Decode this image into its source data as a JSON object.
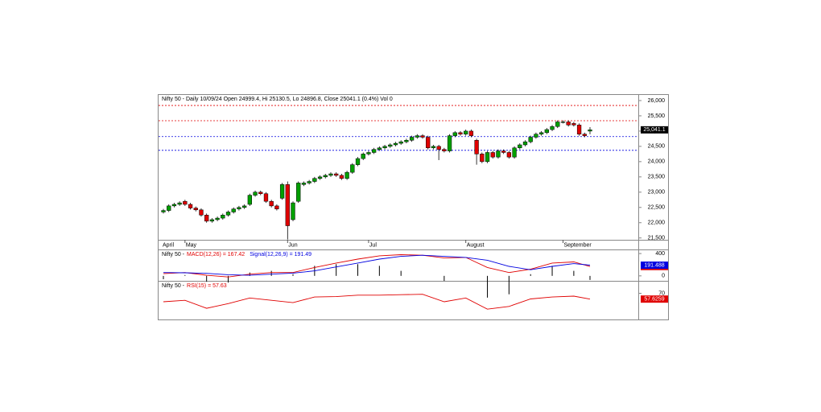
{
  "chart_data": [
    {
      "type": "candlestick",
      "title": "Nifty 50 - Daily 10/09/24 Open 24999.4, Hi 25130.5, Lo 24896.8, Close 25041.1 (0.4%) Vol 0",
      "x_labels": [
        {
          "value": 0,
          "label": "April"
        },
        {
          "value": 4,
          "label": "May"
        },
        {
          "value": 23,
          "label": "Jun"
        },
        {
          "value": 38,
          "label": "Jul"
        },
        {
          "value": 56,
          "label": "August"
        },
        {
          "value": 74,
          "label": "September"
        }
      ],
      "open": [
        22350,
        22400,
        22550,
        22600,
        22700,
        22600,
        22480,
        22420,
        22250,
        22050,
        22100,
        22150,
        22250,
        22350,
        22450,
        22500,
        22600,
        22900,
        23000,
        22950,
        22700,
        22550,
        22800,
        23250,
        22100,
        22700,
        23250,
        23300,
        23350,
        23450,
        23500,
        23550,
        23600,
        23550,
        23450,
        23650,
        23900,
        24100,
        24250,
        24300,
        24400,
        24450,
        24500,
        24550,
        24600,
        24650,
        24700,
        24800,
        24850,
        24800,
        24450,
        24500,
        24400,
        24350,
        24850,
        24950,
        24900,
        25000,
        24700,
        24250,
        24000,
        24300,
        24150,
        24350,
        24300,
        24150,
        24450,
        24550,
        24650,
        24800,
        24900,
        24950,
        25050,
        25150,
        25300,
        25300,
        25250,
        25200,
        24900,
        24999.4
      ],
      "high": [
        22450,
        22600,
        22650,
        22700,
        22750,
        22650,
        22530,
        22470,
        22300,
        22150,
        22200,
        22300,
        22400,
        22500,
        22550,
        22600,
        22950,
        23050,
        23050,
        23000,
        22750,
        22600,
        23300,
        23350,
        22700,
        23350,
        23350,
        23400,
        23500,
        23550,
        23600,
        23650,
        23650,
        23600,
        23700,
        23950,
        24150,
        24300,
        24350,
        24450,
        24500,
        24550,
        24600,
        24650,
        24700,
        24750,
        24850,
        24900,
        24900,
        24850,
        24550,
        24550,
        24450,
        24900,
        25000,
        25000,
        25050,
        25050,
        24750,
        24300,
        24350,
        24350,
        24400,
        24400,
        24350,
        24500,
        24600,
        24700,
        24850,
        24950,
        25000,
        25100,
        25200,
        25350,
        25350,
        25350,
        25300,
        25250,
        24950,
        25130.5
      ],
      "low": [
        22300,
        22350,
        22500,
        22550,
        22550,
        22430,
        22370,
        22200,
        22000,
        22000,
        22050,
        22100,
        22200,
        22300,
        22400,
        22450,
        22550,
        22850,
        22900,
        22650,
        22500,
        22400,
        22750,
        21450,
        22050,
        22650,
        23200,
        23250,
        23300,
        23400,
        23450,
        23500,
        23500,
        23400,
        23400,
        23600,
        23850,
        24050,
        24200,
        24250,
        24350,
        24400,
        24450,
        24500,
        24550,
        24600,
        24650,
        24750,
        24750,
        24400,
        24400,
        24050,
        24300,
        24300,
        24800,
        24850,
        24850,
        24800,
        23900,
        23950,
        23950,
        24100,
        24100,
        24250,
        24100,
        24100,
        24400,
        24500,
        24600,
        24750,
        24850,
        24900,
        25000,
        25100,
        25250,
        25150,
        25150,
        24850,
        24800,
        24896.8
      ],
      "close": [
        22400,
        22550,
        22600,
        22650,
        22600,
        22480,
        22420,
        22250,
        22050,
        22100,
        22150,
        22250,
        22350,
        22450,
        22500,
        22550,
        22900,
        23000,
        22950,
        22700,
        22550,
        22450,
        23250,
        21900,
        22650,
        23300,
        23300,
        23350,
        23450,
        23500,
        23550,
        23600,
        23550,
        23450,
        23650,
        23900,
        24100,
        24250,
        24300,
        24400,
        24450,
        24500,
        24550,
        24600,
        24650,
        24700,
        24800,
        24850,
        24800,
        24450,
        24500,
        24400,
        24350,
        24850,
        24950,
        24900,
        25000,
        24850,
        24250,
        24000,
        24300,
        24150,
        24350,
        24300,
        24150,
        24450,
        24550,
        24650,
        24800,
        24900,
        24950,
        25050,
        25150,
        25300,
        25300,
        25200,
        25200,
        24900,
        24850,
        25041.1
      ],
      "up_color": "#00a000",
      "down_color": "#e00000",
      "ylim": [
        21440,
        26210
      ],
      "yticks": [
        {
          "value": 21500,
          "label": "21,500"
        },
        {
          "value": 22000,
          "label": "22,000"
        },
        {
          "value": 22500,
          "label": "22,500"
        },
        {
          "value": 23000,
          "label": "23,000"
        },
        {
          "value": 23500,
          "label": "23,500"
        },
        {
          "value": 24000,
          "label": "24,000"
        },
        {
          "value": 24500,
          "label": "24,500"
        },
        {
          "value": 25000,
          "label": "25,000"
        },
        {
          "value": 25500,
          "label": "25,500"
        },
        {
          "value": 26000,
          "label": "26,000"
        }
      ],
      "levels": [
        {
          "value": 25840,
          "color": "#e00000"
        },
        {
          "value": 25340,
          "color": "#e00000"
        },
        {
          "value": 24820,
          "color": "#0000e0"
        },
        {
          "value": 24370,
          "color": "#0000e0"
        }
      ],
      "last_label": "25,041.1"
    },
    {
      "type": "line",
      "title": "Nifty 50 -",
      "x": [
        0,
        4,
        8,
        12,
        16,
        20,
        24,
        28,
        32,
        36,
        40,
        44,
        48,
        52,
        56,
        60,
        64,
        68,
        72,
        76,
        79
      ],
      "series": [
        {
          "name": "MACD(12,26) = 167.42",
          "color": "#e00000",
          "end_label": "167.420",
          "values": [
            40,
            60,
            10,
            -20,
            30,
            60,
            60,
            150,
            230,
            300,
            360,
            380,
            370,
            320,
            330,
            150,
            60,
            120,
            230,
            250,
            167.42
          ]
        },
        {
          "name": "Signal(12,26,9) = 191.49",
          "color": "#0000e0",
          "end_label": "191.488",
          "values": [
            60,
            55,
            45,
            20,
            10,
            30,
            50,
            90,
            160,
            230,
            300,
            350,
            370,
            350,
            330,
            280,
            170,
            110,
            170,
            220,
            191.49
          ]
        }
      ],
      "histogram": true,
      "ylim": [
        -89,
        459
      ],
      "yticks": [
        0,
        400
      ]
    },
    {
      "type": "line",
      "title": "Nifty 50 -",
      "x": [
        0,
        4,
        8,
        12,
        16,
        20,
        24,
        28,
        32,
        36,
        40,
        44,
        48,
        52,
        56,
        60,
        64,
        68,
        72,
        76,
        79
      ],
      "series": [
        {
          "name": "RSI(15) = 57.63",
          "color": "#e00000",
          "end_label": "57.6259",
          "values": [
            52,
            55,
            38,
            48,
            60,
            55,
            50,
            62,
            63,
            66,
            66,
            67,
            68,
            52,
            60,
            36,
            42,
            58,
            62,
            64,
            57.63
          ]
        }
      ],
      "ylim": [
        14,
        95
      ],
      "yticks": [
        70
      ]
    }
  ]
}
